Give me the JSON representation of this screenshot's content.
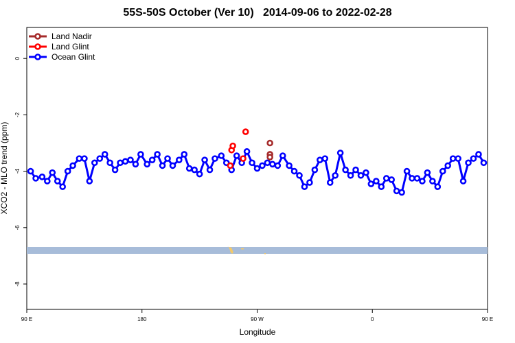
{
  "chart_data": {
    "type": "line",
    "title": "55S-50S October (Ver 10)   2014-09-06 to 2022-02-28",
    "xlabel": "Longitude",
    "ylabel": "XCO2 - MLO trend (ppm)",
    "xlim": [
      -90,
      270
    ],
    "ylim": [
      -8.9,
      1.1
    ],
    "x_ticks": [
      {
        "value": -90,
        "label": "90 E"
      },
      {
        "value": 0,
        "label": "180"
      },
      {
        "value": 90,
        "label": "90 W"
      },
      {
        "value": 180,
        "label": "0"
      },
      {
        "value": 270,
        "label": "90 E"
      },
      {
        "value": 360,
        "label": "180"
      }
    ],
    "y_ticks": [
      0,
      -2,
      -4,
      -6,
      -8
    ],
    "grid": false,
    "legend_position": "top-left",
    "series": [
      {
        "name": "Land Nadir",
        "color": "#a52a2a",
        "x": [
          100,
          100,
          100
        ],
        "y": [
          -3.0,
          -3.4,
          -3.5
        ]
      },
      {
        "name": "Land Glint",
        "color": "#ff0000",
        "x": [
          69,
          70,
          71,
          79,
          81
        ],
        "y": [
          -3.8,
          -3.25,
          -3.1,
          -3.55,
          -2.6
        ]
      },
      {
        "name": "Ocean Glint",
        "color": "#0000ff",
        "x": [
          -87,
          -83,
          -78,
          -74,
          -70,
          -66,
          -62,
          -58,
          -54,
          -49,
          -45,
          -41,
          -37,
          -33,
          -29,
          -25,
          -21,
          -17,
          -13,
          -9,
          -5,
          -1,
          4,
          8,
          12,
          16,
          20,
          24,
          29,
          33,
          37,
          41,
          45,
          49,
          53,
          57,
          62,
          66,
          70,
          74,
          78,
          82,
          86,
          90,
          94,
          98,
          102,
          106,
          110,
          115,
          119,
          123,
          127,
          131,
          135,
          139,
          143,
          147,
          151,
          155,
          159,
          163,
          167,
          171,
          175,
          179,
          183,
          187,
          191,
          195,
          199,
          203,
          207,
          211,
          215,
          219,
          223,
          227,
          231,
          235,
          239,
          243,
          247,
          251,
          255,
          259,
          263,
          267
        ],
        "y": [
          -4.0,
          -4.25,
          -4.2,
          -4.35,
          -4.05,
          -4.35,
          -4.55,
          -4.0,
          -3.8,
          -3.55,
          -3.55,
          -4.35,
          -3.7,
          -3.55,
          -3.4,
          -3.7,
          -3.95,
          -3.7,
          -3.65,
          -3.6,
          -3.75,
          -3.4,
          -3.75,
          -3.6,
          -3.4,
          -3.8,
          -3.55,
          -3.8,
          -3.6,
          -3.4,
          -3.9,
          -3.95,
          -4.1,
          -3.6,
          -3.95,
          -3.55,
          -3.45,
          -3.7,
          -3.95,
          -3.45,
          -3.7,
          -3.3,
          -3.7,
          -3.9,
          -3.8,
          -3.7,
          -3.75,
          -3.8,
          -3.45,
          -3.8,
          -4.0,
          -4.15,
          -4.55,
          -4.4,
          -3.95,
          -3.6,
          -3.55,
          -4.4,
          -4.15,
          -3.35,
          -3.95,
          -4.15,
          -3.95,
          -4.15,
          -4.05,
          -4.45,
          -4.35,
          -4.55,
          -4.25,
          -4.3,
          -4.7,
          -4.75,
          -4.0,
          -4.25,
          -4.25,
          -4.35,
          -4.05,
          -4.35,
          -4.55,
          -4.0,
          -3.8,
          -3.55,
          -3.55,
          -4.35,
          -3.7,
          -3.55,
          -3.4,
          -3.7
        ]
      }
    ]
  }
}
